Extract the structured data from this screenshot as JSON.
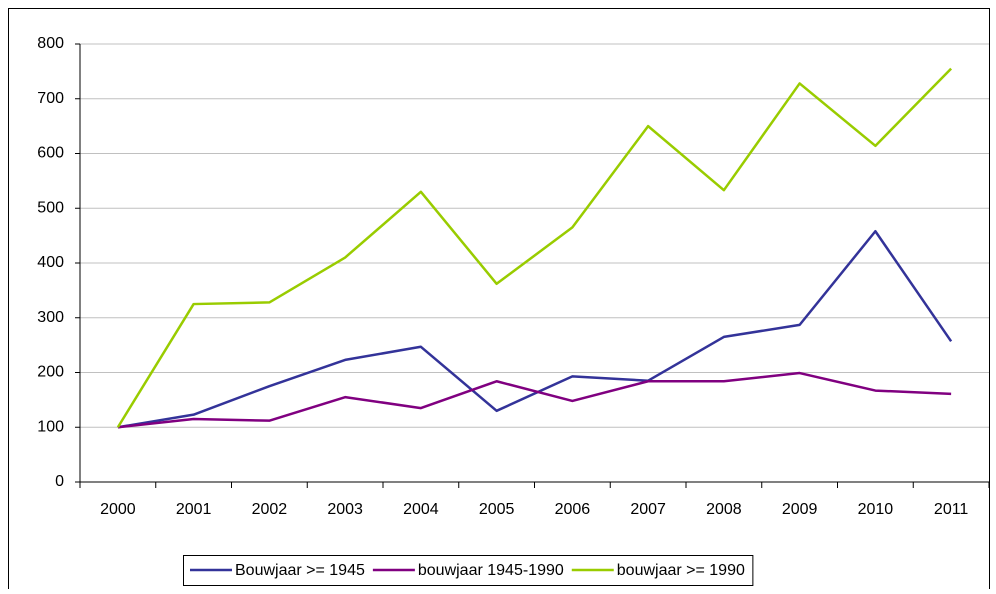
{
  "chart_data": {
    "type": "line",
    "categories": [
      "2000",
      "2001",
      "2002",
      "2003",
      "2004",
      "2005",
      "2006",
      "2007",
      "2008",
      "2009",
      "2010",
      "2011"
    ],
    "series": [
      {
        "name": "Bouwjaar >= 1945",
        "color": "#333399",
        "values": [
          100,
          123,
          175,
          223,
          247,
          130,
          193,
          185,
          265,
          287,
          458,
          257
        ]
      },
      {
        "name": "bouwjaar 1945-1990",
        "color": "#800080",
        "values": [
          100,
          115,
          112,
          155,
          135,
          184,
          148,
          184,
          184,
          199,
          167,
          161
        ]
      },
      {
        "name": "bouwjaar >= 1990",
        "color": "#99cc00",
        "values": [
          100,
          325,
          328,
          410,
          530,
          362,
          465,
          650,
          533,
          728,
          614,
          755
        ]
      }
    ],
    "ylim": [
      0,
      800
    ],
    "yticks": [
      0,
      100,
      200,
      300,
      400,
      500,
      600,
      700,
      800
    ],
    "grid": true,
    "legend": "bottom"
  }
}
